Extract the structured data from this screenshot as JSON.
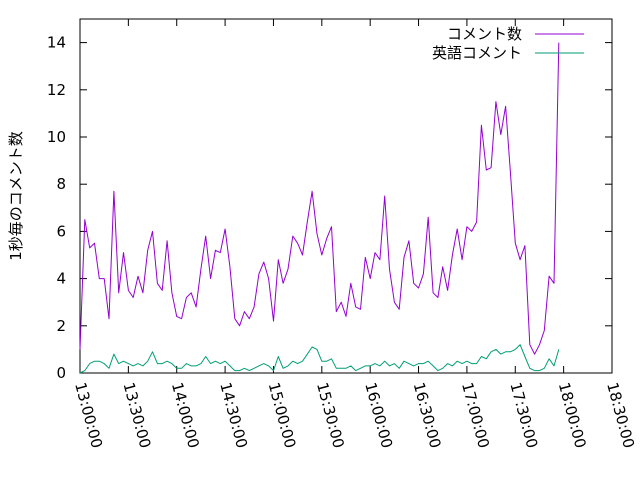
{
  "chart_data": {
    "type": "line",
    "title": "",
    "xlabel": "",
    "ylabel": "1秒毎のコメント数",
    "x_format": "HH:MM:SS",
    "x_start": "13:00:00",
    "x_end": "18:30:00",
    "x_interval_minutes": 3,
    "xticks": [
      "13:00:00",
      "13:30:00",
      "14:00:00",
      "14:30:00",
      "15:00:00",
      "15:30:00",
      "16:00:00",
      "16:30:00",
      "17:00:00",
      "17:30:00",
      "18:00:00",
      "18:30:00"
    ],
    "ylim": [
      0,
      15
    ],
    "yticks": [
      0,
      2,
      4,
      6,
      8,
      10,
      12,
      14
    ],
    "grid": false,
    "legend": "top-right",
    "series": [
      {
        "name": "コメント数",
        "color": "#9400d3",
        "values": [
          1.0,
          6.5,
          5.3,
          5.5,
          4.0,
          4.0,
          2.3,
          7.7,
          3.4,
          5.1,
          3.5,
          3.2,
          4.1,
          3.4,
          5.2,
          6.0,
          3.8,
          3.5,
          5.6,
          3.4,
          2.4,
          2.3,
          3.2,
          3.4,
          2.8,
          4.4,
          5.8,
          4.0,
          5.2,
          5.1,
          6.1,
          4.5,
          2.3,
          2.0,
          2.6,
          2.3,
          2.8,
          4.2,
          4.7,
          4.0,
          2.2,
          4.8,
          3.8,
          4.4,
          5.8,
          5.5,
          5.0,
          6.4,
          7.7,
          5.9,
          5.0,
          5.7,
          6.2,
          2.6,
          3.0,
          2.4,
          3.8,
          2.8,
          2.7,
          4.9,
          4.0,
          5.1,
          4.8,
          7.5,
          4.4,
          3.0,
          2.7,
          4.9,
          5.6,
          3.8,
          3.6,
          4.2,
          6.6,
          3.4,
          3.2,
          4.5,
          3.5,
          5.0,
          6.1,
          4.8,
          6.2,
          6.0,
          6.4,
          10.5,
          8.6,
          8.7,
          11.5,
          10.1,
          11.3,
          8.5,
          5.5,
          4.8,
          5.4,
          1.2,
          0.8,
          1.2,
          1.8,
          4.1,
          3.8,
          14.0
        ]
      },
      {
        "name": "英語コメント",
        "color": "#009e73",
        "values": [
          0.0,
          0.1,
          0.4,
          0.5,
          0.5,
          0.4,
          0.2,
          0.8,
          0.4,
          0.5,
          0.4,
          0.3,
          0.4,
          0.3,
          0.5,
          0.9,
          0.4,
          0.4,
          0.5,
          0.4,
          0.2,
          0.2,
          0.4,
          0.3,
          0.3,
          0.4,
          0.7,
          0.4,
          0.5,
          0.4,
          0.5,
          0.3,
          0.1,
          0.1,
          0.2,
          0.1,
          0.2,
          0.3,
          0.4,
          0.3,
          0.1,
          0.7,
          0.2,
          0.3,
          0.5,
          0.4,
          0.5,
          0.8,
          1.1,
          1.0,
          0.5,
          0.5,
          0.6,
          0.2,
          0.2,
          0.2,
          0.3,
          0.1,
          0.2,
          0.3,
          0.3,
          0.4,
          0.3,
          0.5,
          0.3,
          0.4,
          0.2,
          0.5,
          0.4,
          0.3,
          0.4,
          0.4,
          0.5,
          0.3,
          0.1,
          0.2,
          0.4,
          0.3,
          0.5,
          0.4,
          0.5,
          0.4,
          0.4,
          0.7,
          0.6,
          0.9,
          1.0,
          0.8,
          0.9,
          0.9,
          1.0,
          1.2,
          0.7,
          0.2,
          0.1,
          0.1,
          0.2,
          0.6,
          0.3,
          1.0
        ]
      }
    ]
  }
}
